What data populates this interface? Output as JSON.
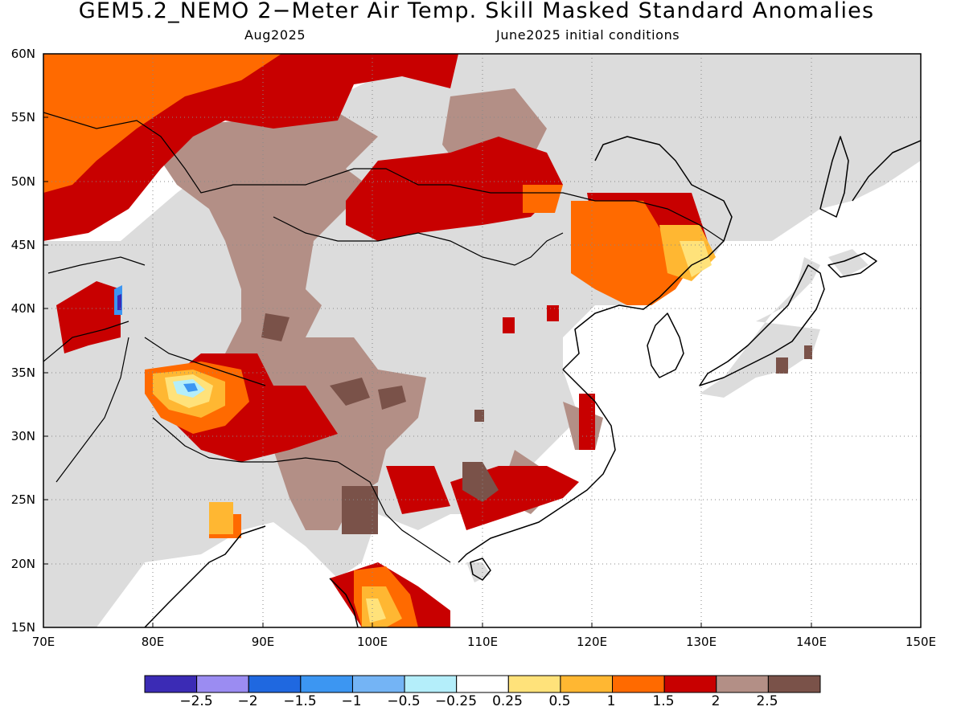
{
  "title": "GEM5.2_NEMO 2−Meter Air Temp. Skill Masked Standard Anomalies",
  "subtitle_left": "Aug2025",
  "subtitle_right": "June2025 initial conditions",
  "map": {
    "lon_range": [
      70,
      150
    ],
    "lat_range": [
      15,
      60
    ],
    "lat_labels": [
      "15N",
      "20N",
      "25N",
      "30N",
      "35N",
      "40N",
      "45N",
      "50N",
      "55N",
      "60N"
    ],
    "lon_labels": [
      "70E",
      "80E",
      "90E",
      "100E",
      "110E",
      "120E",
      "130E",
      "140E",
      "150E"
    ],
    "gridlines": "dotted",
    "masked_color": "#dcdcdc"
  },
  "colorbar": {
    "colors": [
      "#3b2bb5",
      "#9b8cf2",
      "#1f68e0",
      "#3c96f2",
      "#74b4f5",
      "#b4eefa",
      "#ffffff",
      "#ffe27a",
      "#ffb732",
      "#ff6a00",
      "#c80000",
      "#b38f86",
      "#7a5249"
    ],
    "labels": [
      "−2.5",
      "−2",
      "−1.5",
      "−1",
      "−0.5",
      "−0.25",
      "0.25",
      "0.5",
      "1",
      "1.5",
      "2",
      "2.5"
    ]
  }
}
